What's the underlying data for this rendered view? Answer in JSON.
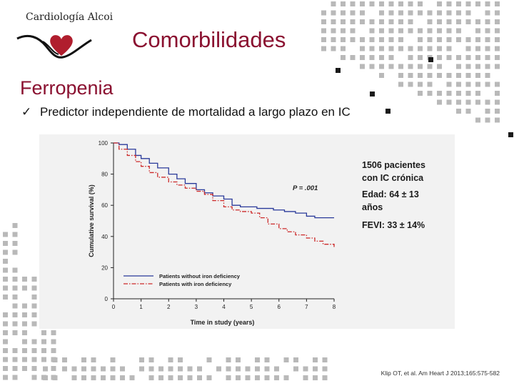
{
  "slide": {
    "logo_text": "Cardiología Alcoi",
    "title": "Comorbilidades",
    "section_heading": "Ferropenia",
    "bullet": "Predictor independiente de mortalidad a largo plazo en IC",
    "citation": "Klip OT, et al. Am Heart J 2013;165:575-582",
    "accent_color": "#8a1030"
  },
  "figure_notes": {
    "line1": "1506 pacientes",
    "line2": "con IC crónica",
    "line3": "Edad: 64 ± 13",
    "line4": "años",
    "line5": "FEVI: 33 ± 14%"
  },
  "chart_data": {
    "type": "line",
    "xlabel": "Time in study (years)",
    "ylabel": "Cumulative survival (%)",
    "xlim": [
      0,
      8
    ],
    "ylim": [
      0,
      100
    ],
    "x_ticks": [
      "0",
      "1",
      "2",
      "3",
      "4",
      "5",
      "6",
      "7",
      "8"
    ],
    "y_ticks": [
      "0",
      "20",
      "40",
      "60",
      "80",
      "100"
    ],
    "annotation": "P = .001",
    "legend_position": "bottom-left",
    "series": [
      {
        "name": "Patients without iron deficiency",
        "color": "#2a3a9a",
        "style": "solid",
        "x": [
          0,
          0.2,
          0.5,
          0.8,
          1.0,
          1.3,
          1.6,
          2.0,
          2.3,
          2.6,
          3.0,
          3.3,
          3.6,
          4.0,
          4.3,
          4.6,
          5.0,
          5.2,
          5.6,
          5.8,
          6.2,
          6.6,
          7.0,
          7.3,
          7.6,
          8.0
        ],
        "y": [
          100,
          99,
          96,
          92,
          90,
          87,
          84,
          80,
          77,
          74,
          70,
          68,
          66,
          64,
          60,
          59,
          59,
          58,
          58,
          57,
          56,
          55,
          53,
          52,
          52,
          52
        ]
      },
      {
        "name": "Patients with iron deficiency",
        "color": "#cc2a2a",
        "style": "dashdot",
        "x": [
          0,
          0.2,
          0.5,
          0.8,
          1.0,
          1.3,
          1.6,
          2.0,
          2.3,
          2.6,
          3.0,
          3.3,
          3.6,
          4.0,
          4.3,
          4.6,
          5.0,
          5.3,
          5.6,
          6.0,
          6.3,
          6.6,
          7.0,
          7.3,
          7.6,
          8.0
        ],
        "y": [
          100,
          96,
          92,
          88,
          85,
          81,
          78,
          75,
          73,
          71,
          69,
          67,
          63,
          59,
          57,
          56,
          55,
          52,
          48,
          45,
          43,
          41,
          39,
          37,
          35,
          33
        ]
      }
    ]
  }
}
